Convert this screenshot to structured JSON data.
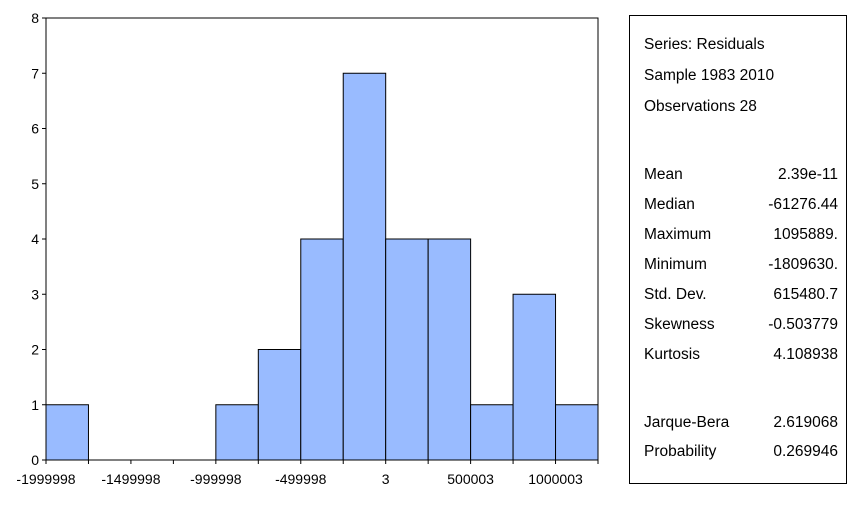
{
  "chart_data": {
    "type": "bar",
    "title": "",
    "xlabel": "",
    "ylabel": "",
    "ylim": [
      0,
      8
    ],
    "y_ticks": [
      "0",
      "1",
      "2",
      "3",
      "4",
      "5",
      "6",
      "7",
      "8"
    ],
    "x_tick_labels": [
      "-1999998",
      "-1499998",
      "-999998",
      "-499998",
      "3",
      "500003",
      "1000003"
    ],
    "bar_color": "#99bbff",
    "bins": [
      {
        "from": -2000000,
        "to": -1750000,
        "count": 1
      },
      {
        "from": -1750000,
        "to": -1500000,
        "count": 0
      },
      {
        "from": -1500000,
        "to": -1250000,
        "count": 0
      },
      {
        "from": -1250000,
        "to": -1000000,
        "count": 0
      },
      {
        "from": -1000000,
        "to": -750000,
        "count": 1
      },
      {
        "from": -750000,
        "to": -500000,
        "count": 2
      },
      {
        "from": -500000,
        "to": -250000,
        "count": 4
      },
      {
        "from": -250000,
        "to": 0,
        "count": 7
      },
      {
        "from": 0,
        "to": 250000,
        "count": 4
      },
      {
        "from": 250000,
        "to": 500000,
        "count": 4
      },
      {
        "from": 500000,
        "to": 750000,
        "count": 1
      },
      {
        "from": 750000,
        "to": 1000000,
        "count": 3
      },
      {
        "from": 1000000,
        "to": 1250000,
        "count": 1
      }
    ]
  },
  "stats": {
    "header": [
      "Series: Residuals",
      "Sample 1983 2010",
      "Observations 28"
    ],
    "rows": [
      {
        "label": "Mean",
        "value": "2.39e-11"
      },
      {
        "label": "Median",
        "value": "-61276.44"
      },
      {
        "label": "Maximum",
        "value": "1095889."
      },
      {
        "label": "Minimum",
        "value": "-1809630."
      },
      {
        "label": "Std. Dev.",
        "value": "615480.7"
      },
      {
        "label": "Skewness",
        "value": "-0.503779"
      },
      {
        "label": "Kurtosis",
        "value": "4.108938"
      }
    ],
    "test_rows": [
      {
        "label": "Jarque-Bera",
        "value": "2.619068"
      },
      {
        "label": "Probability",
        "value": "0.269946"
      }
    ]
  }
}
